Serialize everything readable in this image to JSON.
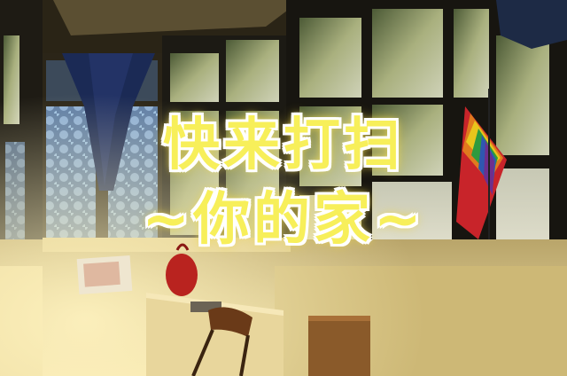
{
  "caption": {
    "line1": "快来打扫",
    "line2": "~你的家~"
  },
  "scene": {
    "description_colors": {
      "wall": "#e9d79a",
      "window_frame": "#1c1a14",
      "glass_light": "#cfd6c0",
      "curtain": "#1b2a55",
      "tile": "#6f8fb8",
      "flag_red": "#c8242a"
    }
  }
}
